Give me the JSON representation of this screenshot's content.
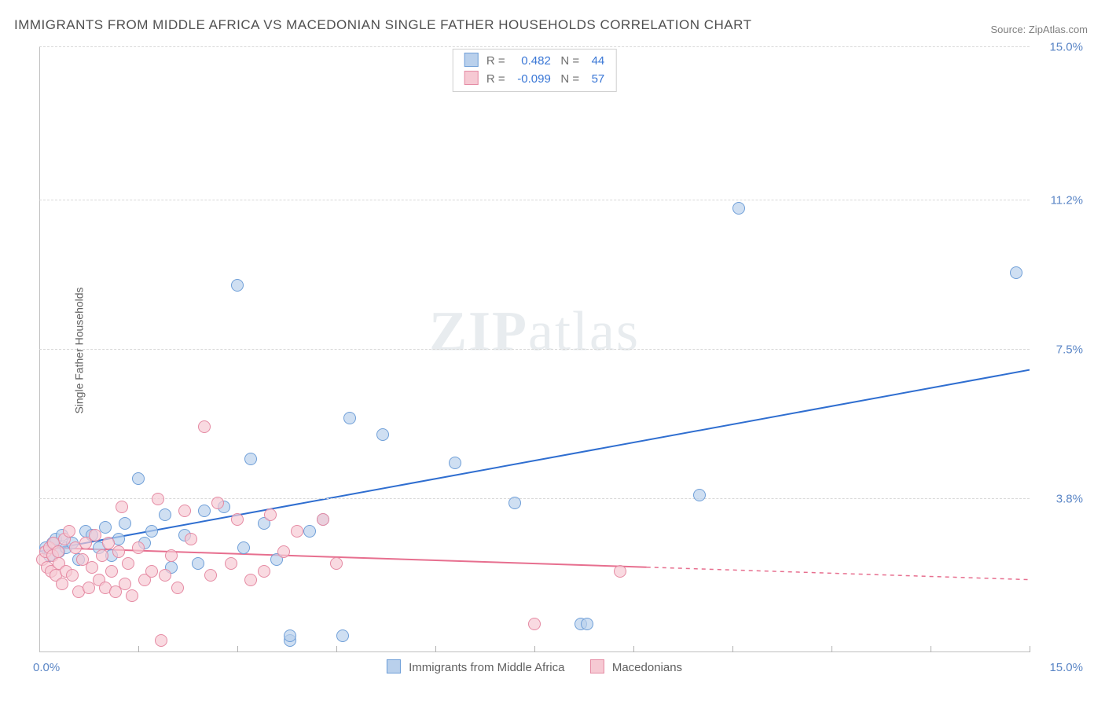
{
  "title": "IMMIGRANTS FROM MIDDLE AFRICA VS MACEDONIAN SINGLE FATHER HOUSEHOLDS CORRELATION CHART",
  "source": "Source: ZipAtlas.com",
  "ylabel": "Single Father Households",
  "watermark_zip": "ZIP",
  "watermark_atlas": "atlas",
  "chart": {
    "type": "scatter",
    "xlim": [
      0.0,
      15.0
    ],
    "ylim": [
      0.0,
      15.0
    ],
    "grid_y": [
      3.8,
      7.5,
      11.2,
      15.0
    ],
    "grid_color": "#d8d8d8",
    "x_ticks": [
      1.5,
      3.0,
      4.5,
      6.0,
      7.5,
      9.0,
      10.5,
      12.0,
      13.5,
      15.0
    ],
    "x_min_label": "0.0%",
    "x_max_label": "15.0%",
    "y_tick_labels": [
      "3.8%",
      "7.5%",
      "11.2%",
      "15.0%"
    ],
    "legend_top": [
      {
        "r": "0.482",
        "n": "44",
        "swatch_fill": "#b9d0ec",
        "swatch_border": "#6f9fd8"
      },
      {
        "r": "-0.099",
        "n": "57",
        "swatch_fill": "#f6c9d3",
        "swatch_border": "#e58aa3"
      }
    ],
    "legend_bottom": [
      {
        "label": "Immigrants from Middle Africa",
        "swatch_fill": "#b9d0ec",
        "swatch_border": "#6f9fd8"
      },
      {
        "label": "Macedonians",
        "swatch_fill": "#f6c9d3",
        "swatch_border": "#e58aa3"
      }
    ],
    "series": [
      {
        "name": "Immigrants from Middle Africa",
        "marker_fill": "#b9d0ecb0",
        "marker_border": "#6f9fd8",
        "trend": {
          "color": "#2f6ed0",
          "y_at_x0": 2.5,
          "y_at_x15": 7.0,
          "solid_until_x": 15.0
        },
        "points": [
          [
            0.1,
            2.6
          ],
          [
            0.15,
            2.4
          ],
          [
            0.2,
            2.7
          ],
          [
            0.25,
            2.8
          ],
          [
            0.3,
            2.5
          ],
          [
            0.35,
            2.9
          ],
          [
            0.4,
            2.6
          ],
          [
            0.5,
            2.7
          ],
          [
            0.6,
            2.3
          ],
          [
            0.7,
            3.0
          ],
          [
            0.8,
            2.9
          ],
          [
            0.9,
            2.6
          ],
          [
            1.0,
            3.1
          ],
          [
            1.1,
            2.4
          ],
          [
            1.2,
            2.8
          ],
          [
            1.3,
            3.2
          ],
          [
            1.5,
            4.3
          ],
          [
            1.6,
            2.7
          ],
          [
            1.7,
            3.0
          ],
          [
            1.9,
            3.4
          ],
          [
            2.0,
            2.1
          ],
          [
            2.2,
            2.9
          ],
          [
            2.4,
            2.2
          ],
          [
            2.5,
            3.5
          ],
          [
            2.8,
            3.6
          ],
          [
            3.0,
            9.1
          ],
          [
            3.1,
            2.6
          ],
          [
            3.2,
            4.8
          ],
          [
            3.4,
            3.2
          ],
          [
            3.6,
            2.3
          ],
          [
            3.8,
            0.3
          ],
          [
            3.8,
            0.4
          ],
          [
            4.1,
            3.0
          ],
          [
            4.3,
            3.3
          ],
          [
            4.6,
            0.4
          ],
          [
            4.7,
            5.8
          ],
          [
            5.2,
            5.4
          ],
          [
            6.3,
            4.7
          ],
          [
            7.2,
            3.7
          ],
          [
            8.2,
            0.7
          ],
          [
            8.3,
            0.7
          ],
          [
            10.0,
            3.9
          ],
          [
            10.6,
            11.0
          ],
          [
            14.8,
            9.4
          ]
        ]
      },
      {
        "name": "Macedonians",
        "marker_fill": "#f6c9d3b0",
        "marker_border": "#e58aa3",
        "trend": {
          "color": "#e76f8f",
          "y_at_x0": 2.6,
          "y_at_x15": 1.8,
          "solid_until_x": 9.2
        },
        "points": [
          [
            0.05,
            2.3
          ],
          [
            0.1,
            2.5
          ],
          [
            0.12,
            2.1
          ],
          [
            0.15,
            2.6
          ],
          [
            0.18,
            2.0
          ],
          [
            0.2,
            2.4
          ],
          [
            0.22,
            2.7
          ],
          [
            0.25,
            1.9
          ],
          [
            0.28,
            2.5
          ],
          [
            0.3,
            2.2
          ],
          [
            0.35,
            1.7
          ],
          [
            0.38,
            2.8
          ],
          [
            0.4,
            2.0
          ],
          [
            0.45,
            3.0
          ],
          [
            0.5,
            1.9
          ],
          [
            0.55,
            2.6
          ],
          [
            0.6,
            1.5
          ],
          [
            0.65,
            2.3
          ],
          [
            0.7,
            2.7
          ],
          [
            0.75,
            1.6
          ],
          [
            0.8,
            2.1
          ],
          [
            0.85,
            2.9
          ],
          [
            0.9,
            1.8
          ],
          [
            0.95,
            2.4
          ],
          [
            1.0,
            1.6
          ],
          [
            1.05,
            2.7
          ],
          [
            1.1,
            2.0
          ],
          [
            1.15,
            1.5
          ],
          [
            1.2,
            2.5
          ],
          [
            1.25,
            3.6
          ],
          [
            1.3,
            1.7
          ],
          [
            1.35,
            2.2
          ],
          [
            1.4,
            1.4
          ],
          [
            1.5,
            2.6
          ],
          [
            1.6,
            1.8
          ],
          [
            1.7,
            2.0
          ],
          [
            1.8,
            3.8
          ],
          [
            1.85,
            0.3
          ],
          [
            1.9,
            1.9
          ],
          [
            2.0,
            2.4
          ],
          [
            2.1,
            1.6
          ],
          [
            2.2,
            3.5
          ],
          [
            2.3,
            2.8
          ],
          [
            2.5,
            5.6
          ],
          [
            2.6,
            1.9
          ],
          [
            2.7,
            3.7
          ],
          [
            2.9,
            2.2
          ],
          [
            3.0,
            3.3
          ],
          [
            3.2,
            1.8
          ],
          [
            3.4,
            2.0
          ],
          [
            3.5,
            3.4
          ],
          [
            3.7,
            2.5
          ],
          [
            3.9,
            3.0
          ],
          [
            4.3,
            3.3
          ],
          [
            4.5,
            2.2
          ],
          [
            7.5,
            0.7
          ],
          [
            8.8,
            2.0
          ]
        ]
      }
    ]
  }
}
